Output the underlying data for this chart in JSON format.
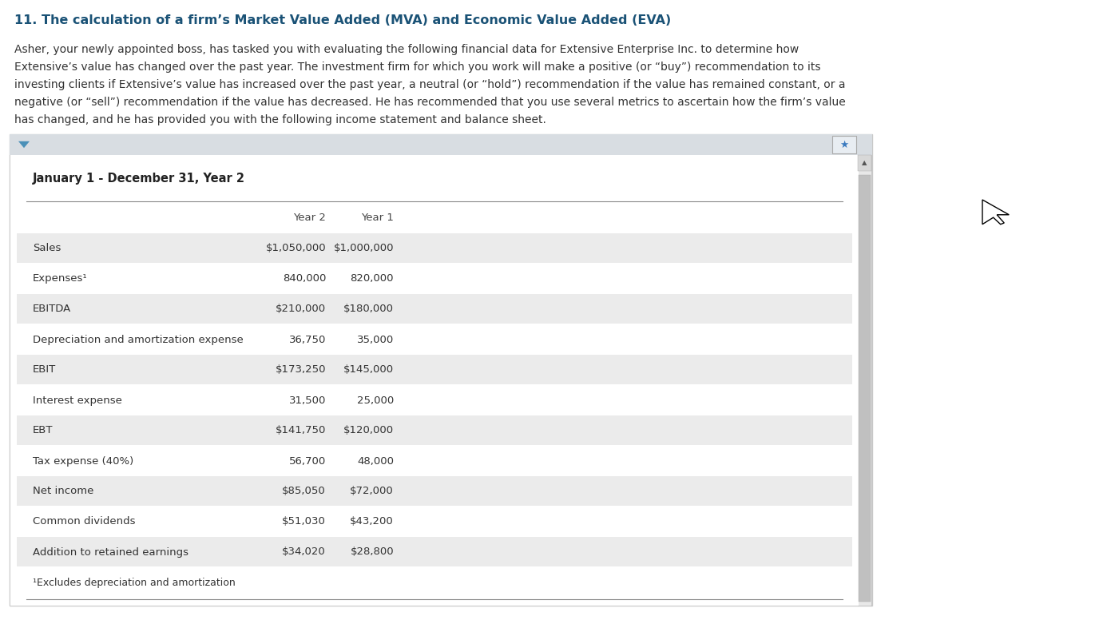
{
  "title": "11. The calculation of a firm’s Market Value Added (MVA) and Economic Value Added (EVA)",
  "title_color": "#1a5276",
  "body_text_lines": [
    "Asher, your newly appointed boss, has tasked you with evaluating the following financial data for Extensive Enterprise Inc. to determine how",
    "Extensive’s value has changed over the past year. The investment firm for which you work will make a positive (or “buy”) recommendation to its",
    "investing clients if Extensive’s value has increased over the past year, a neutral (or “hold”) recommendation if the value has remained constant, or a",
    "negative (or “sell”) recommendation if the value has decreased. He has recommended that you use several metrics to ascertain how the firm’s value",
    "has changed, and he has provided you with the following income statement and balance sheet."
  ],
  "table_title": "January 1 - December 31, Year 2",
  "col_header_year2": "Year 2",
  "col_header_year1": "Year 1",
  "rows": [
    {
      "label": "Sales",
      "year2": "$1,050,000",
      "year1": "$1,000,000",
      "bold": true,
      "shaded": true
    },
    {
      "label": "Expenses¹",
      "year2": "840,000",
      "year1": "820,000",
      "bold": false,
      "shaded": false
    },
    {
      "label": "EBITDA",
      "year2": "$210,000",
      "year1": "$180,000",
      "bold": true,
      "shaded": true
    },
    {
      "label": "Depreciation and amortization expense",
      "year2": "36,750",
      "year1": "35,000",
      "bold": false,
      "shaded": false
    },
    {
      "label": "EBIT",
      "year2": "$173,250",
      "year1": "$145,000",
      "bold": true,
      "shaded": true
    },
    {
      "label": "Interest expense",
      "year2": "31,500",
      "year1": "25,000",
      "bold": false,
      "shaded": false
    },
    {
      "label": "EBT",
      "year2": "$141,750",
      "year1": "$120,000",
      "bold": true,
      "shaded": true
    },
    {
      "label": "Tax expense (40%)",
      "year2": "56,700",
      "year1": "48,000",
      "bold": false,
      "shaded": false
    },
    {
      "label": "Net income",
      "year2": "$85,050",
      "year1": "$72,000",
      "bold": true,
      "shaded": true
    },
    {
      "label": "Common dividends",
      "year2": "$51,030",
      "year1": "$43,200",
      "bold": false,
      "shaded": false
    },
    {
      "label": "Addition to retained earnings",
      "year2": "$34,020",
      "year1": "$28,800",
      "bold": false,
      "shaded": true
    },
    {
      "label": "¹Excludes depreciation and amortization",
      "year2": "",
      "year1": "",
      "bold": false,
      "shaded": false,
      "footnote": true
    }
  ],
  "bg_color": "#ffffff",
  "shaded_row_color": "#ebebeb",
  "panel_bg": "#f0f0f0",
  "panel_border": "#c8c8c8",
  "panel_header_color": "#d8dde2",
  "inner_bg": "#ffffff",
  "scrollbar_track": "#e8e8e8",
  "scrollbar_thumb": "#c0c0c0",
  "triangle_color": "#4a90b8",
  "pin_color": "#3a7abf",
  "text_color": "#333333",
  "line_color": "#888888"
}
